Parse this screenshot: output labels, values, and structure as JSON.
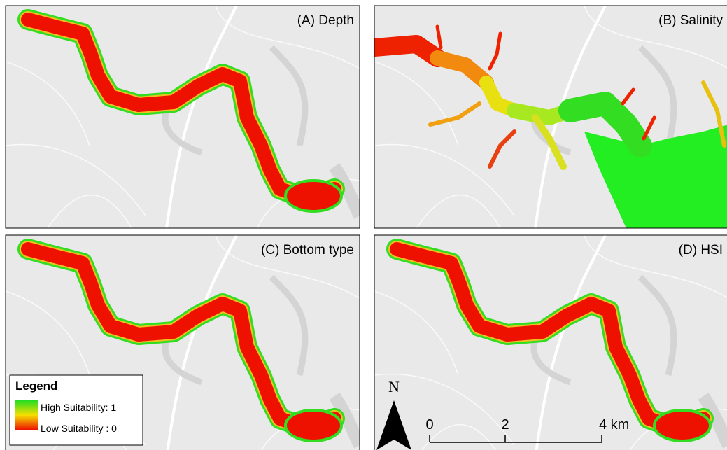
{
  "panels": [
    {
      "label": "(A) Depth"
    },
    {
      "label": "(B) Salinity"
    },
    {
      "label": "(C) Bottom type"
    },
    {
      "label": "(D) HSI"
    }
  ],
  "legend": {
    "title": "Legend",
    "items": [
      "High Suitability: 1",
      "Low Suitability : 0"
    ]
  },
  "north_arrow": {
    "label": "N"
  },
  "scale_bar": {
    "labels": [
      "0",
      "2",
      "4 km"
    ]
  }
}
